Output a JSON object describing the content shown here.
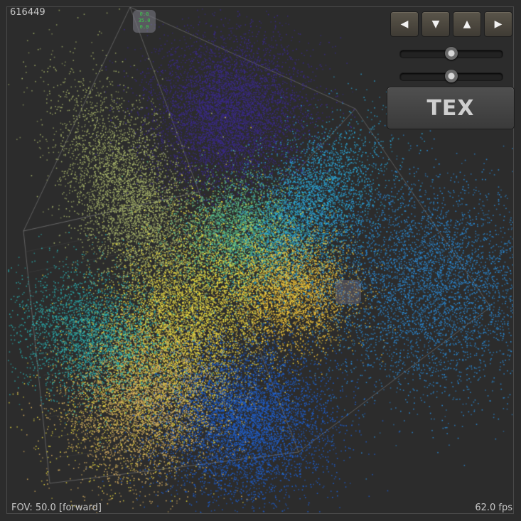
{
  "viewer": {
    "point_count": "616449",
    "status": "FOV: 50.0  [forward]",
    "fps": "62.0 fps"
  },
  "controls": {
    "nav": [
      {
        "glyph": "◀",
        "name": "left"
      },
      {
        "glyph": "▼",
        "name": "down"
      },
      {
        "glyph": "▲",
        "name": "up"
      },
      {
        "glyph": "▶",
        "name": "right"
      }
    ],
    "slider_levels": [
      0.5,
      0.5
    ],
    "tex_label": "TEX"
  },
  "gizmo": {
    "lines": [
      "0.0",
      "35.0",
      "0.0"
    ]
  },
  "colors": {
    "background": "#2c2c2c",
    "box_edges": "#8a8a8a",
    "clusters": [
      "#3a2a8a",
      "#a8b56a",
      "#5cc08a",
      "#2aa6d6",
      "#f2c43a",
      "#2a8ad6",
      "#f0e040",
      "#1e5fd0",
      "#d8b060",
      "#2ab0b0"
    ]
  }
}
